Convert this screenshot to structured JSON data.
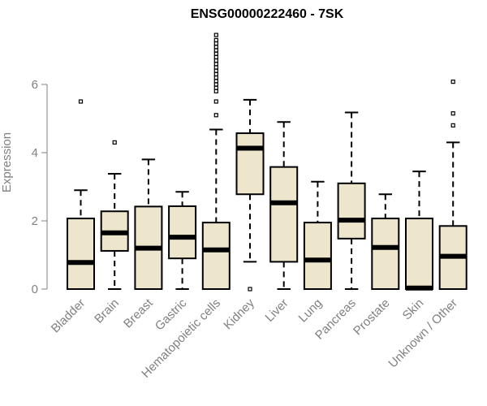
{
  "chart_data": {
    "type": "boxplot",
    "title": "ENSG00000222460 - 7SK",
    "xlabel": "",
    "ylabel": "Expression",
    "ylim": [
      0,
      7.6
    ],
    "yticks": [
      0,
      2,
      4,
      6
    ],
    "box_fill": "#ede6cd",
    "categories": [
      "Bladder",
      "Brain",
      "Breast",
      "Gastric",
      "Hematopoietic cells",
      "Kidney",
      "Liver",
      "Lung",
      "Pancreas",
      "Prostate",
      "Skin",
      "Unknown / Other"
    ],
    "boxes": [
      {
        "name": "Bladder",
        "whislo": 0,
        "q1": 0,
        "med": 0.78,
        "q3": 2.07,
        "whishi": 2.9,
        "fliers": [
          5.5
        ]
      },
      {
        "name": "Brain",
        "whislo": 0,
        "q1": 1.12,
        "med": 1.65,
        "q3": 2.28,
        "whishi": 3.38,
        "fliers": [
          4.3
        ]
      },
      {
        "name": "Breast",
        "whislo": 0,
        "q1": 0,
        "med": 1.2,
        "q3": 2.42,
        "whishi": 3.8,
        "fliers": []
      },
      {
        "name": "Gastric",
        "whislo": 0,
        "q1": 0.9,
        "med": 1.52,
        "q3": 2.43,
        "whishi": 2.85,
        "fliers": []
      },
      {
        "name": "Hematopoietic cells",
        "whislo": 0,
        "q1": 0,
        "med": 1.15,
        "q3": 1.95,
        "whishi": 4.68,
        "fliers": [
          5.1,
          5.5,
          5.8,
          5.9,
          6.0,
          6.1,
          6.2,
          6.3,
          6.4,
          6.5,
          6.6,
          6.7,
          6.8,
          6.9,
          7.0,
          7.1,
          7.2,
          7.3,
          7.45
        ]
      },
      {
        "name": "Kidney",
        "whislo": 0.8,
        "q1": 2.78,
        "med": 4.13,
        "q3": 4.57,
        "whishi": 5.55,
        "fliers": [
          0
        ]
      },
      {
        "name": "Liver",
        "whislo": 0,
        "q1": 0.8,
        "med": 2.53,
        "q3": 3.58,
        "whishi": 4.9,
        "fliers": []
      },
      {
        "name": "Lung",
        "whislo": 0,
        "q1": 0,
        "med": 0.85,
        "q3": 1.95,
        "whishi": 3.15,
        "fliers": []
      },
      {
        "name": "Pancreas",
        "whislo": 0,
        "q1": 1.48,
        "med": 2.02,
        "q3": 3.1,
        "whishi": 5.18,
        "fliers": []
      },
      {
        "name": "Prostate",
        "whislo": 0,
        "q1": 0,
        "med": 1.22,
        "q3": 2.07,
        "whishi": 2.78,
        "fliers": []
      },
      {
        "name": "Skin",
        "whislo": 0,
        "q1": 0,
        "med": 0.03,
        "q3": 2.07,
        "whishi": 3.45,
        "fliers": []
      },
      {
        "name": "Unknown / Other",
        "whislo": 0,
        "q1": 0,
        "med": 0.96,
        "q3": 1.85,
        "whishi": 4.3,
        "fliers": [
          4.8,
          5.15,
          6.08
        ]
      }
    ]
  }
}
